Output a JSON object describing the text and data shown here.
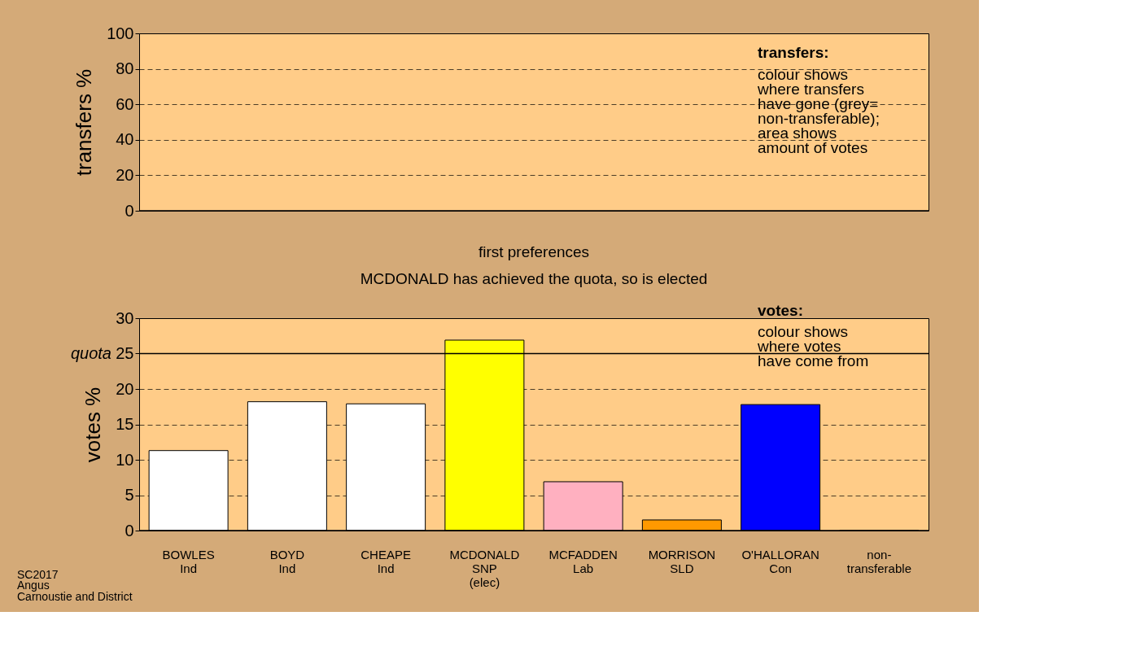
{
  "chart_data": [
    {
      "type": "bar",
      "ylabel": "transfers %",
      "categories": [
        null,
        null,
        null,
        null,
        null,
        null,
        null,
        null
      ],
      "values": [
        null,
        null,
        null,
        null,
        null,
        null,
        null,
        null
      ],
      "ylim": [
        0,
        100
      ],
      "yticks": [
        0,
        20,
        40,
        60,
        80,
        100
      ],
      "grid": "y",
      "tick_labels": "y",
      "annotations": [
        "transfers:",
        "colour shows\nwhere transfers\nhave gone (grey=\nnon-transferable);\narea shows\namount of votes"
      ]
    },
    {
      "type": "bar",
      "title": "first preferences",
      "subtitle": "MCDONALD has achieved the quota, so is elected",
      "ylabel": "votes %",
      "categories": [
        "BOWLES\nInd",
        "BOYD\nInd",
        "CHEAPE\nInd",
        "MCDONALD\nSNP\n(elec)",
        "MCFADDEN\nLab",
        "MORRISON\nSLD",
        "O'HALLORAN\nCon",
        "non-\ntransferable"
      ],
      "values": [
        11.3,
        18.2,
        17.9,
        26.9,
        6.9,
        1.5,
        17.8,
        0
      ],
      "colors": [
        "#ffffff",
        "#ffffff",
        "#ffffff",
        "#ffff00",
        "#ffb0c0",
        "#ff9900",
        "#0000ff",
        "#000000"
      ],
      "ylim": [
        0,
        30
      ],
      "yticks": [
        0,
        5,
        10,
        15,
        20,
        25,
        30
      ],
      "grid": "y",
      "ref_lines": [
        {
          "axis": "y",
          "value": 25,
          "label": "quota",
          "color": "#000000"
        }
      ],
      "annotations": [
        "votes:",
        "colour shows\nwhere votes\nhave come from",
        "SC2017\nAngus\nCarnoustie and District"
      ]
    }
  ]
}
